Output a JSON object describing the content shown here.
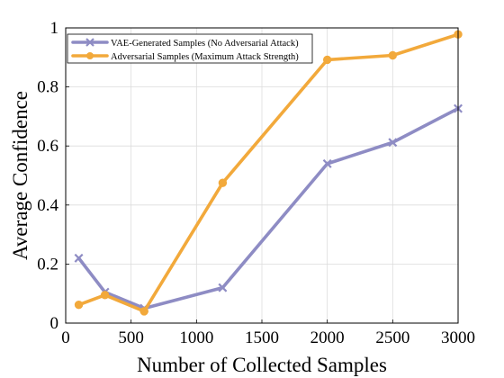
{
  "chart_data": {
    "type": "line",
    "xlabel": "Number of Collected Samples",
    "ylabel": "Average Confidence",
    "xlim": [
      0,
      3000
    ],
    "ylim": [
      0,
      1
    ],
    "xticks": [
      0,
      500,
      1000,
      1500,
      2000,
      2500,
      3000
    ],
    "yticks": [
      0,
      0.2,
      0.4,
      0.6,
      0.8,
      1
    ],
    "xtick_labels": [
      "0",
      "500",
      "1000",
      "1500",
      "2000",
      "2500",
      "3000"
    ],
    "ytick_labels": [
      "0",
      "0.2",
      "0.4",
      "0.6",
      "0.8",
      "1"
    ],
    "grid": true,
    "legend_position": "top-left",
    "series": [
      {
        "name": "VAE-Generated Samples (No Adversarial Attack)",
        "color": "#8e8cc4",
        "marker": "x",
        "x": [
          100,
          300,
          600,
          1200,
          2000,
          2500,
          3000
        ],
        "y": [
          0.22,
          0.105,
          0.05,
          0.12,
          0.54,
          0.612,
          0.727
        ]
      },
      {
        "name": "Adversarial Samples (Maximum Attack Strength)",
        "color": "#f2a93b",
        "marker": "o",
        "x": [
          100,
          300,
          600,
          1200,
          2000,
          2500,
          3000
        ],
        "y": [
          0.062,
          0.095,
          0.04,
          0.475,
          0.892,
          0.907,
          0.978
        ]
      }
    ]
  }
}
